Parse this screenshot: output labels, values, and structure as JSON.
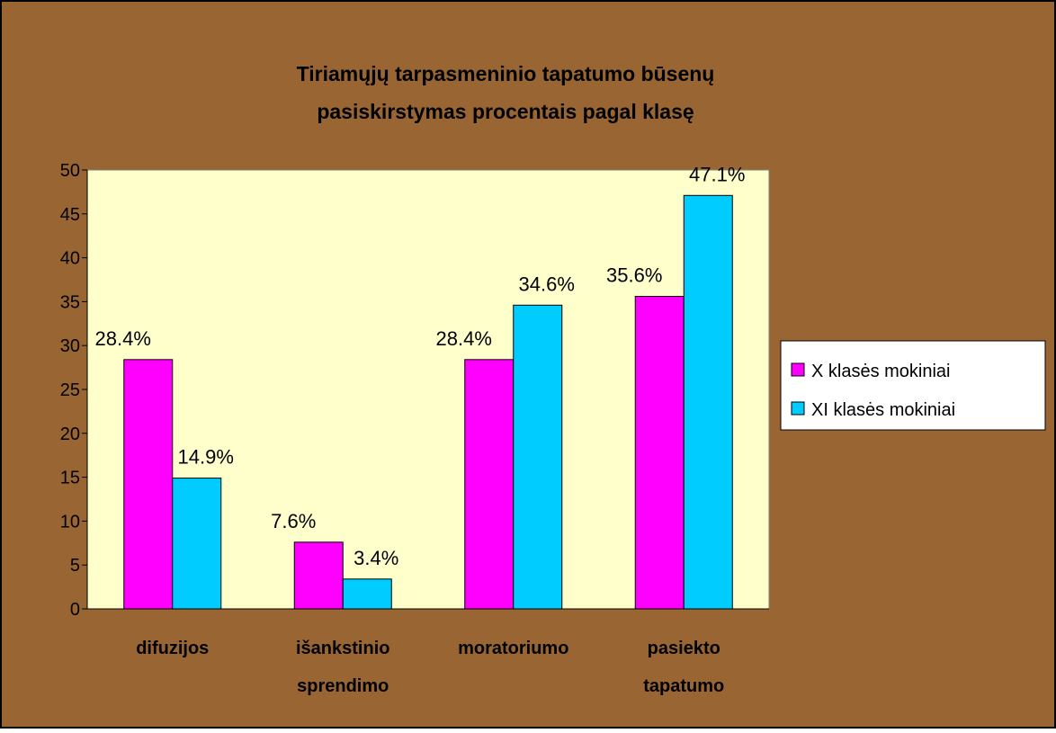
{
  "chart_data": {
    "type": "bar",
    "title": [
      "Tiriamųjų tarpasmeninio tapatumo būsenų",
      "pasiskirstymas procentais pagal klasę"
    ],
    "categories": [
      "difuzijos",
      "išankstinio sprendimo",
      "moratoriumo",
      "pasiekto tapatumo"
    ],
    "series": [
      {
        "name": "X klasės mokiniai",
        "color": "#ff00ff",
        "values": [
          28.4,
          7.6,
          28.4,
          35.6
        ],
        "value_labels": [
          "28.4%",
          "7.6%",
          "28.4%",
          "35.6%"
        ]
      },
      {
        "name": "XI klasės mokiniai",
        "color": "#00ccff",
        "values": [
          14.9,
          3.4,
          34.6,
          47.1
        ],
        "value_labels": [
          "14.9%",
          "3.4%",
          "34.6%",
          "47.1%"
        ]
      }
    ],
    "ylim": [
      0,
      50
    ],
    "yticks": [
      0,
      5,
      10,
      15,
      20,
      25,
      30,
      35,
      40,
      45,
      50
    ],
    "grid": false,
    "legend": "right"
  }
}
